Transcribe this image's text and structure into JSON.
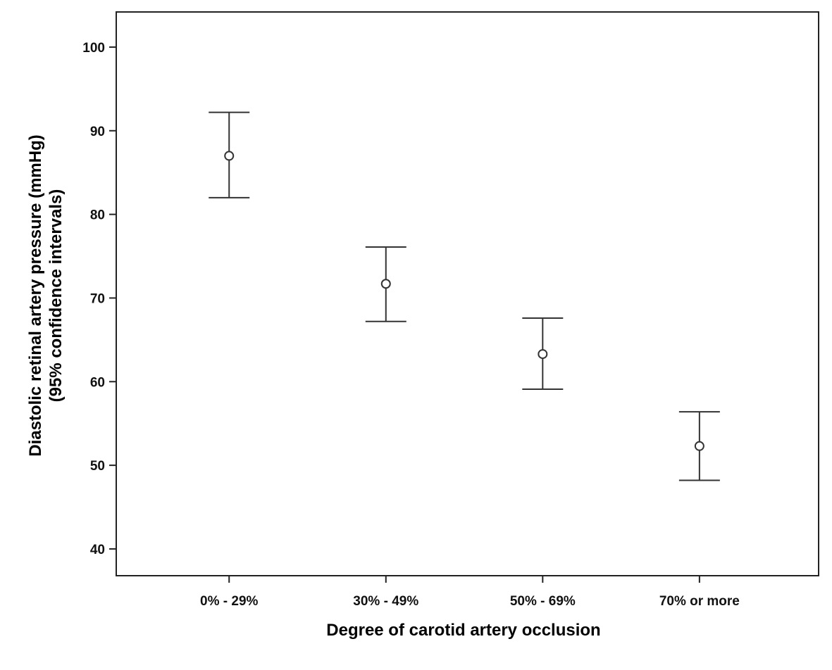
{
  "chart_data": {
    "type": "scatter",
    "title": "",
    "xlabel": "Degree of carotid artery occlusion",
    "ylabel_line1": "Diastolic retinal artery pressure (mmHg)",
    "ylabel_line2": "(95% confidence intervals)",
    "categories": [
      "0% - 29%",
      "30% - 49%",
      "50% - 69%",
      "70% or more"
    ],
    "means": [
      87.0,
      71.7,
      63.3,
      52.3
    ],
    "ci_lower": [
      82.0,
      67.2,
      59.1,
      48.2
    ],
    "ci_upper": [
      92.2,
      76.1,
      67.6,
      56.4
    ],
    "ylim": [
      36.8,
      104.2
    ],
    "yticks": [
      "40",
      "50",
      "60",
      "70",
      "80",
      "90",
      "100"
    ],
    "grid": false,
    "colors": {
      "line": "#333333",
      "marker": "#333333"
    }
  }
}
